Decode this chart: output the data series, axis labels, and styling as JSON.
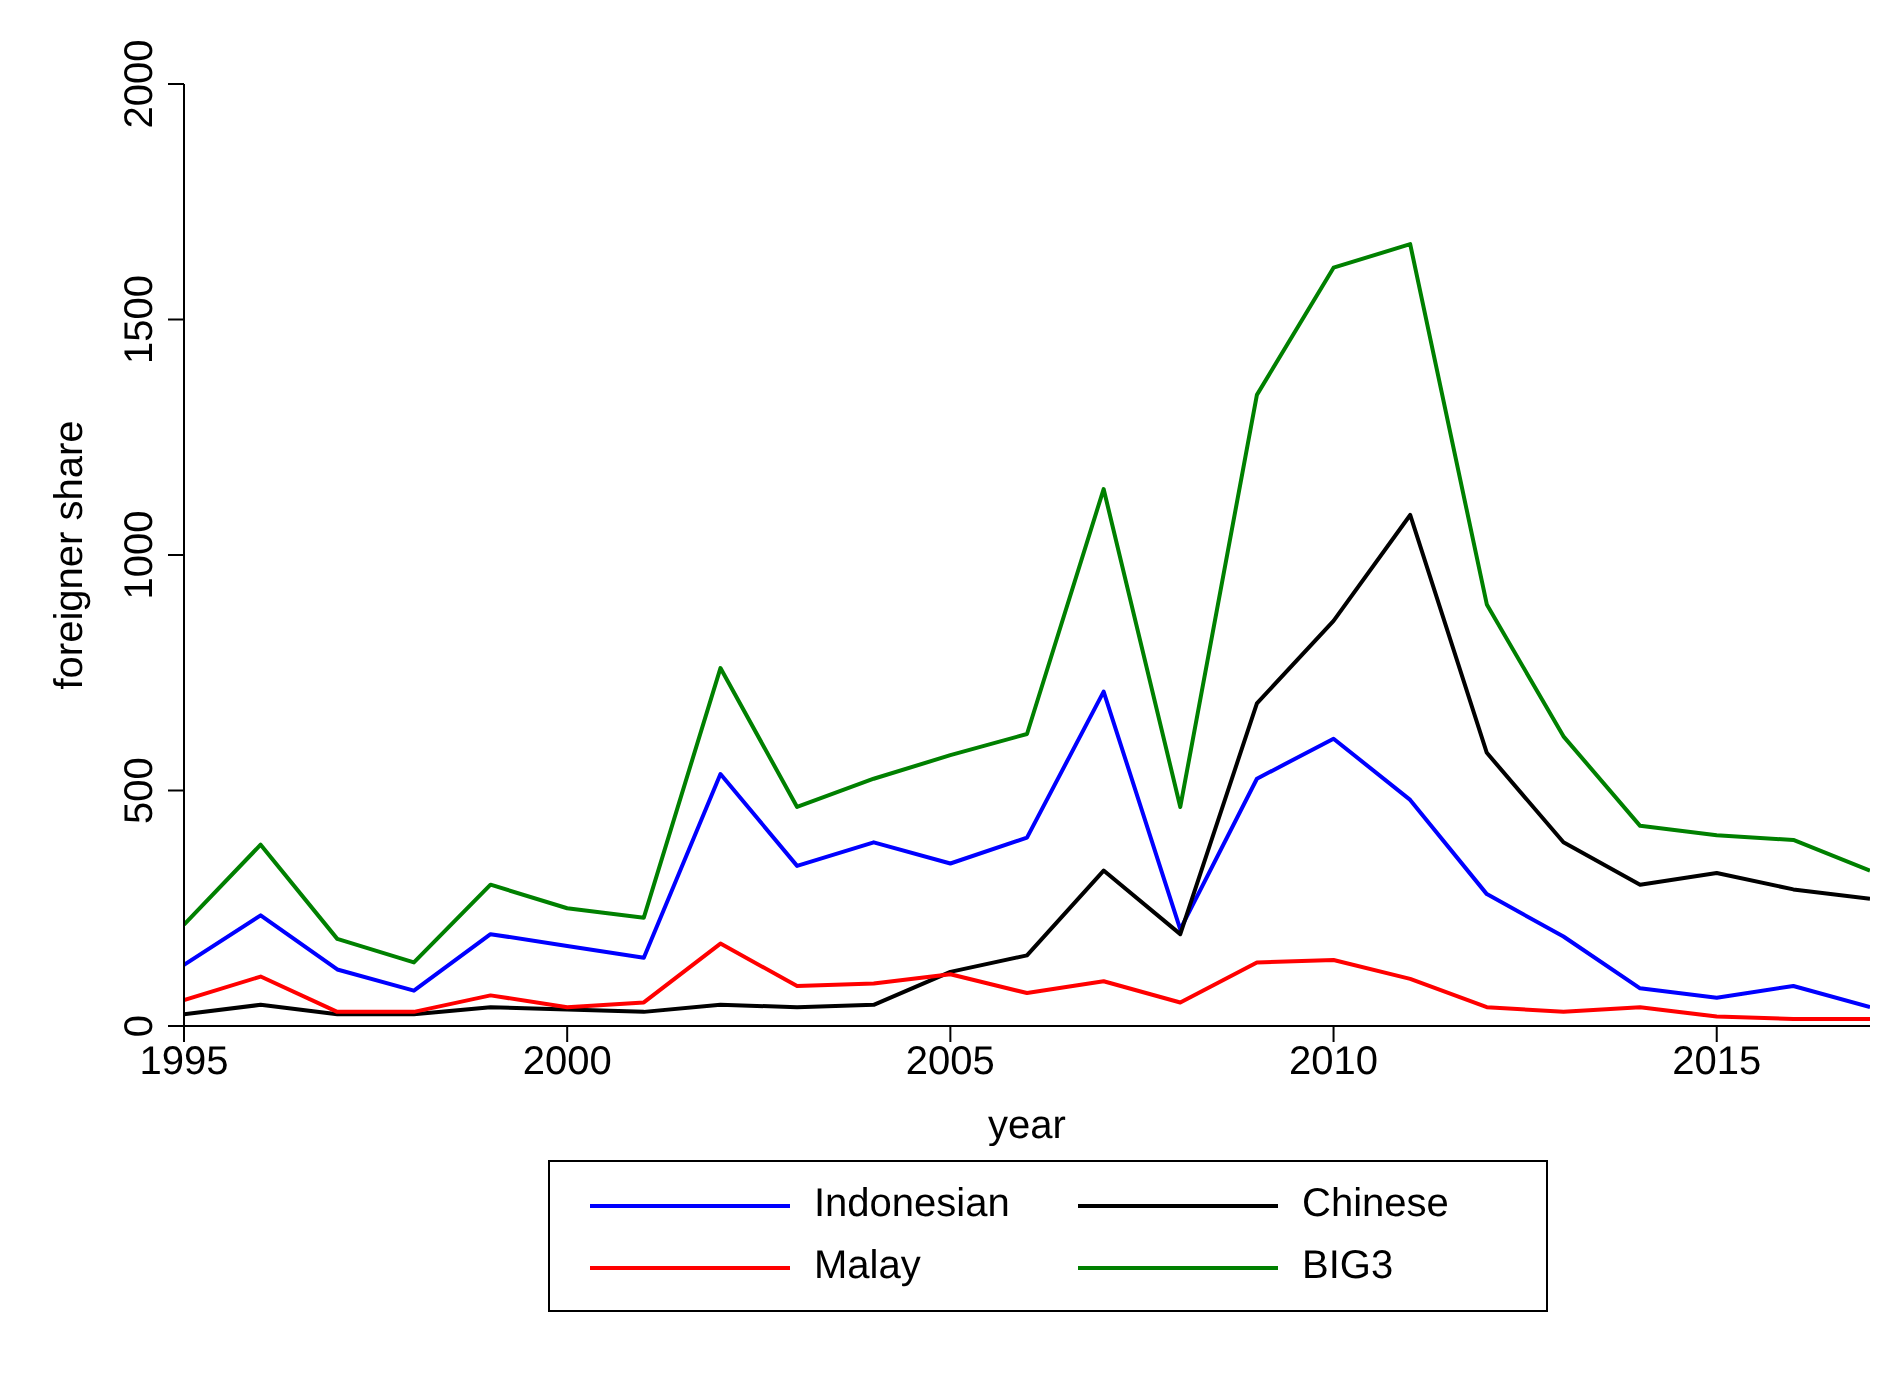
{
  "chart_data": {
    "type": "line",
    "xlabel": "year",
    "ylabel": "foreigner share",
    "x": [
      1995,
      1996,
      1997,
      1998,
      1999,
      2000,
      2001,
      2002,
      2003,
      2004,
      2005,
      2006,
      2007,
      2008,
      2009,
      2010,
      2011,
      2012,
      2013,
      2014,
      2015,
      2016,
      2017
    ],
    "xlim": [
      1995,
      2017
    ],
    "xticks": [
      1995,
      2000,
      2005,
      2010,
      2015
    ],
    "ylim": [
      0,
      2000
    ],
    "yticks": [
      0,
      500,
      1000,
      1500,
      2000
    ],
    "grid": false,
    "legend": "bottom",
    "marker": "none",
    "line_style": "solid",
    "series": [
      {
        "name": "Indonesian",
        "color": "#0000ff",
        "values": [
          130,
          235,
          120,
          75,
          195,
          170,
          145,
          535,
          340,
          390,
          345,
          400,
          710,
          205,
          525,
          610,
          480,
          280,
          190,
          80,
          60,
          85,
          40
        ]
      },
      {
        "name": "Chinese",
        "color": "#000000",
        "values": [
          25,
          45,
          25,
          25,
          40,
          35,
          30,
          45,
          40,
          45,
          115,
          150,
          330,
          195,
          685,
          860,
          1085,
          580,
          390,
          300,
          325,
          290,
          270
        ]
      },
      {
        "name": "Malay",
        "color": "#ff0000",
        "values": [
          55,
          105,
          30,
          30,
          65,
          40,
          50,
          175,
          85,
          90,
          110,
          70,
          95,
          50,
          135,
          140,
          100,
          40,
          30,
          40,
          20,
          15,
          15
        ]
      },
      {
        "name": "BIG3",
        "color": "#008000",
        "values": [
          215,
          385,
          185,
          135,
          300,
          250,
          230,
          760,
          465,
          525,
          575,
          620,
          1140,
          465,
          1340,
          1610,
          1660,
          895,
          615,
          425,
          405,
          395,
          330
        ]
      }
    ]
  }
}
